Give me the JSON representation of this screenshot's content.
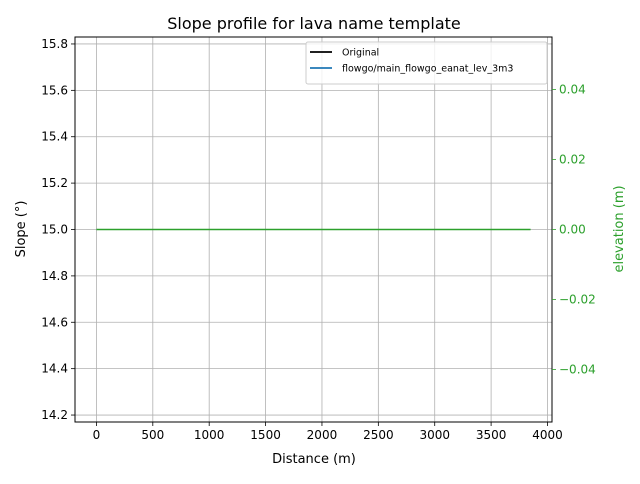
{
  "chart_data": {
    "type": "line",
    "title": "Slope profile for lava name template",
    "xlabel": "Distance (m)",
    "ylabel": "Slope (°)",
    "y2label": "elevation (m)",
    "xlim": [
      -190,
      4040
    ],
    "ylim": [
      14.17,
      15.83
    ],
    "y2lim": [
      -0.055,
      0.055
    ],
    "xticks": [
      {
        "value": 0,
        "label": "0"
      },
      {
        "value": 500,
        "label": "500"
      },
      {
        "value": 1000,
        "label": "1000"
      },
      {
        "value": 1500,
        "label": "1500"
      },
      {
        "value": 2000,
        "label": "2000"
      },
      {
        "value": 2500,
        "label": "2500"
      },
      {
        "value": 3000,
        "label": "3000"
      },
      {
        "value": 3500,
        "label": "3500"
      },
      {
        "value": 4000,
        "label": "4000"
      }
    ],
    "yticks": [
      {
        "value": 14.2,
        "label": "14.2"
      },
      {
        "value": 14.4,
        "label": "14.4"
      },
      {
        "value": 14.6,
        "label": "14.6"
      },
      {
        "value": 14.8,
        "label": "14.8"
      },
      {
        "value": 15.0,
        "label": "15.0"
      },
      {
        "value": 15.2,
        "label": "15.2"
      },
      {
        "value": 15.4,
        "label": "15.4"
      },
      {
        "value": 15.6,
        "label": "15.6"
      },
      {
        "value": 15.8,
        "label": "15.8"
      }
    ],
    "y2ticks": [
      {
        "value": -0.04,
        "label": "−0.04"
      },
      {
        "value": -0.02,
        "label": "−0.02"
      },
      {
        "value": 0.0,
        "label": "0.00"
      },
      {
        "value": 0.02,
        "label": "0.02"
      },
      {
        "value": 0.04,
        "label": "0.04"
      }
    ],
    "grid": true,
    "legend_position": "top-right",
    "series": [
      {
        "name": "Original",
        "axis": "left",
        "color": "#000000",
        "x": [],
        "y": []
      },
      {
        "name": "flowgo/main_flowgo_eanat_lev_3m3",
        "axis": "left",
        "color": "#1f77b4",
        "x": [],
        "y": []
      },
      {
        "name": "",
        "axis": "right",
        "color": "#2ca02c",
        "x": [
          0,
          3850
        ],
        "y": [
          0,
          0
        ]
      }
    ],
    "colors": {
      "right_axis": "#2ca02c",
      "grid": "#b0b0b0"
    }
  }
}
